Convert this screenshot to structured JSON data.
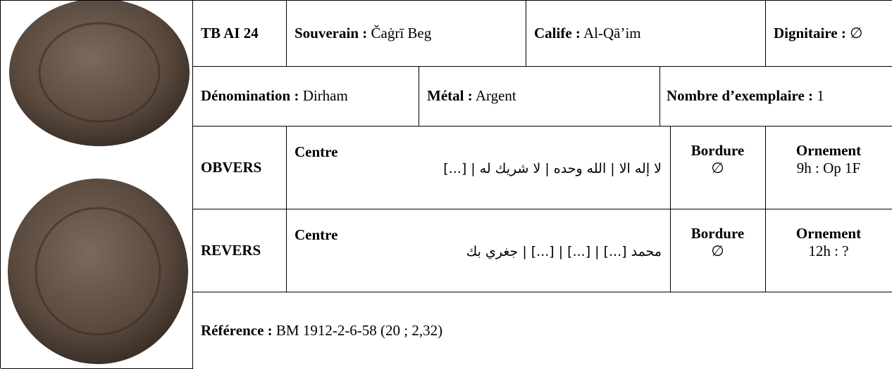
{
  "header": {
    "id": "TB AI 24",
    "souverain": {
      "label": "Souverain :",
      "value": "Čaġrī Beg"
    },
    "calife": {
      "label": "Calife :",
      "value": "Al-Qā’im"
    },
    "dignitaire": {
      "label": "Dignitaire :",
      "value": "∅"
    }
  },
  "details": {
    "denomination": {
      "label": "Dénomination :",
      "value": "Dirham"
    },
    "metal": {
      "label": "Métal :",
      "value": "Argent"
    },
    "exemplaires": {
      "label": "Nombre d’exemplaire :",
      "value": "1"
    }
  },
  "obvers": {
    "label": "OBVERS",
    "centre_label": "Centre",
    "centre": "لا إله الا | الله وحده | لا شريك له | [...]",
    "bordure_label": "Bordure",
    "bordure": "∅",
    "ornement_label": "Ornement",
    "ornement": "9h : Op 1F"
  },
  "revers": {
    "label": "REVERS",
    "centre_label": "Centre",
    "centre": "محمد [...] | [...] | [...] | جغري بك",
    "bordure_label": "Bordure",
    "bordure": "∅",
    "ornement_label": "Ornement",
    "ornement": "12h : ?"
  },
  "reference": {
    "label": "Référence :",
    "value": "BM 1912-2-6-58 (20 ; 2,32)"
  }
}
